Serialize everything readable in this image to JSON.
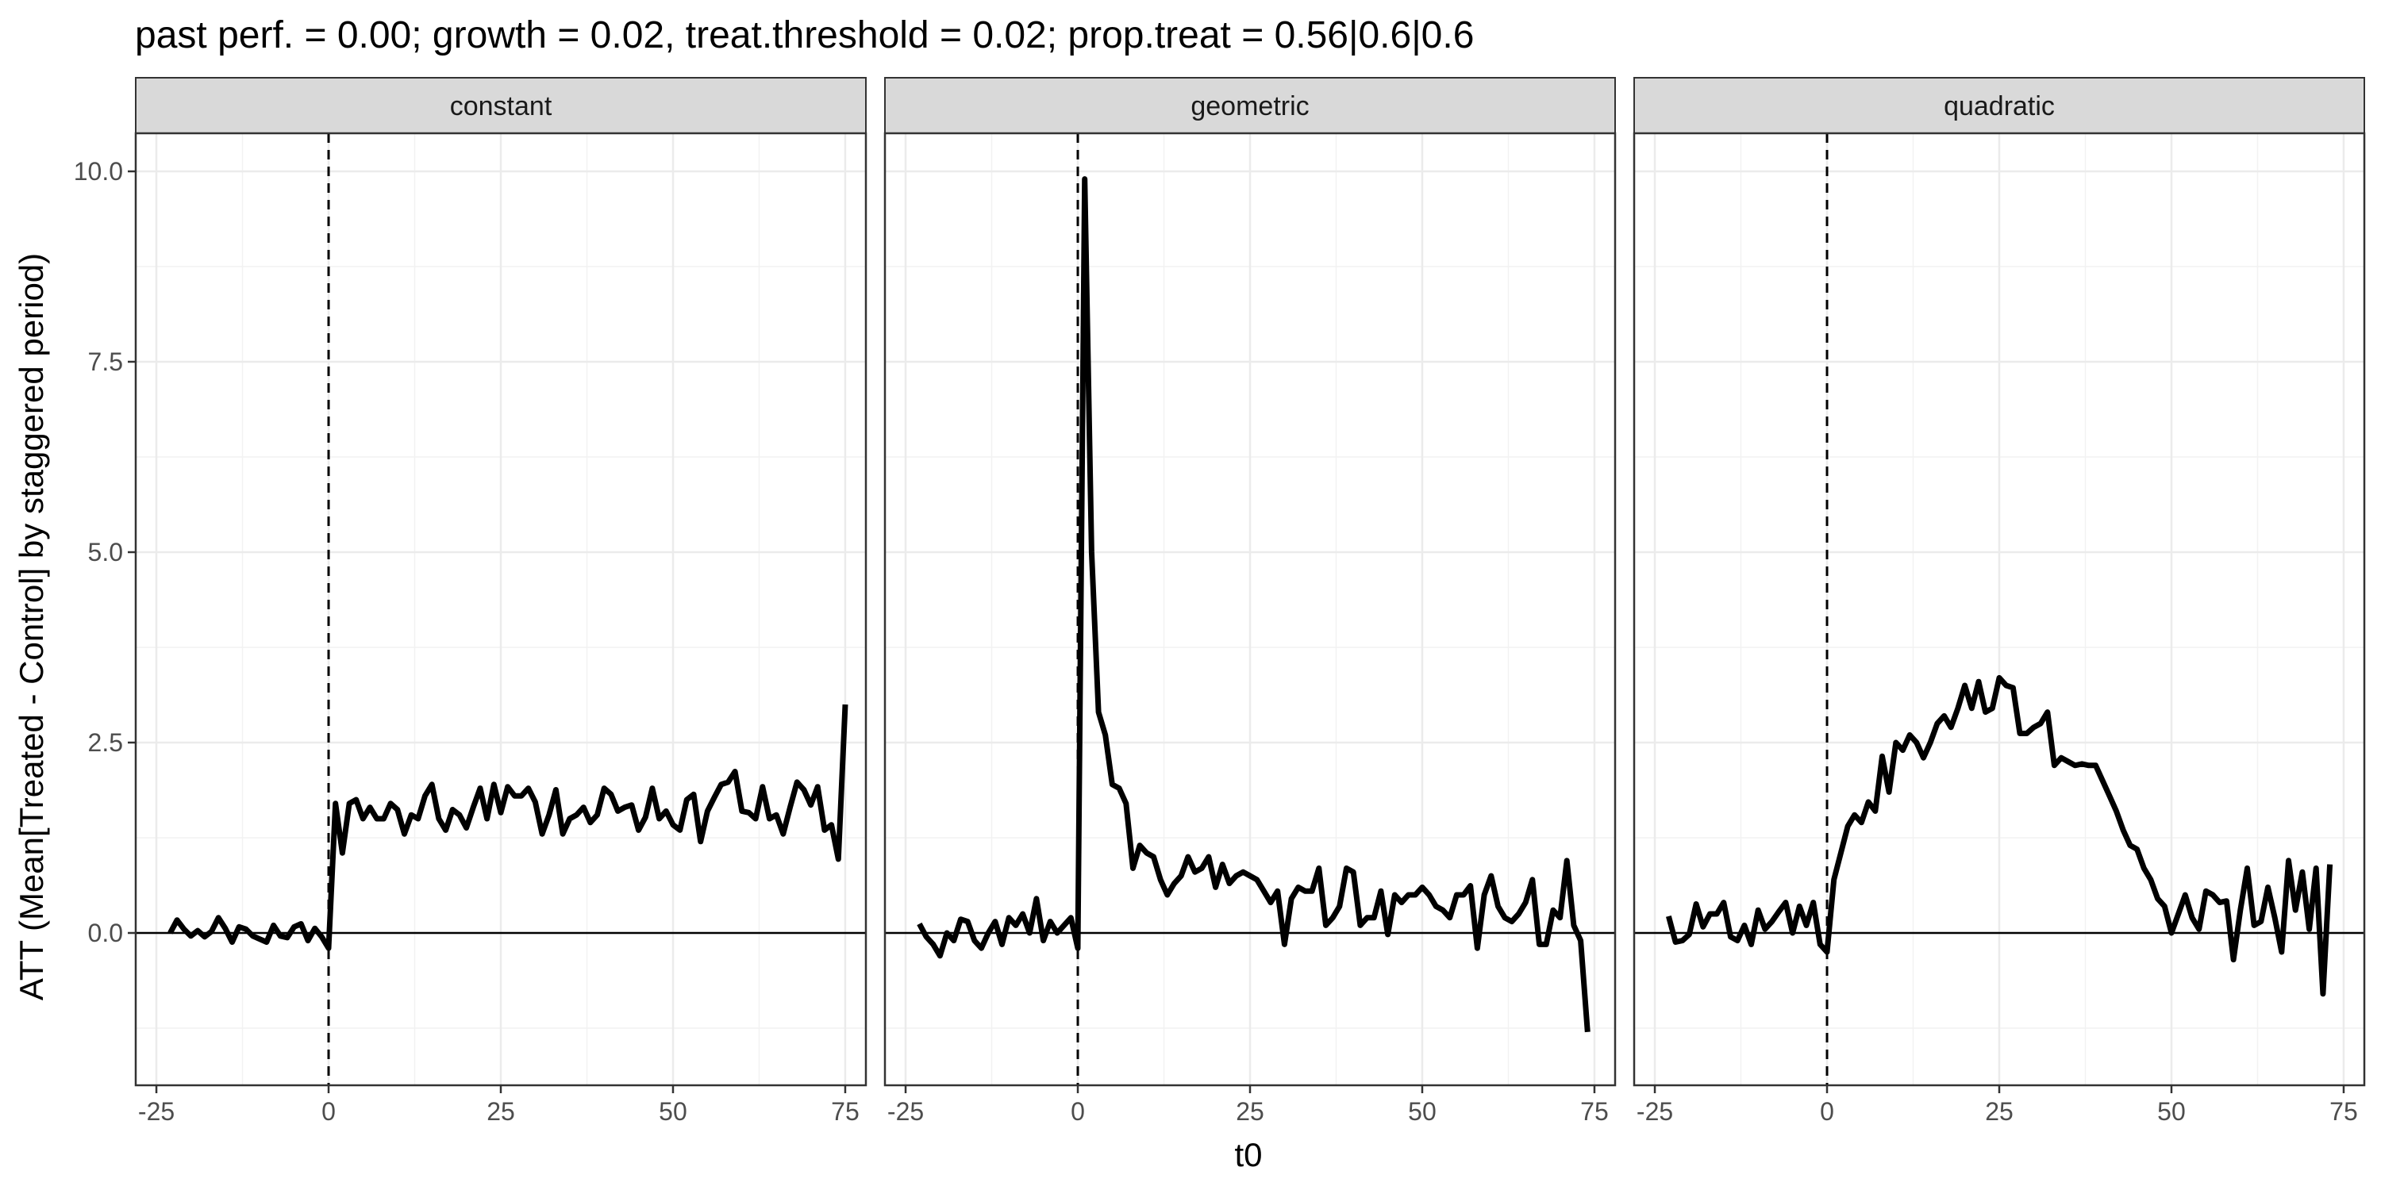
{
  "chart_data": {
    "type": "line",
    "title": "past perf. = 0.00; growth = 0.02,  treat.threshold = 0.02;  prop.treat = 0.56|0.6|0.6",
    "xlabel": "t0",
    "ylabel": "ATT (Mean[Treated - Control] by staggered period)",
    "xlim": [
      -28,
      78
    ],
    "ylim": [
      -2.0,
      10.5
    ],
    "x_ticks": [
      "-25",
      "0",
      "25",
      "50",
      "75"
    ],
    "x_tick_values": [
      -25,
      0,
      25,
      50,
      75
    ],
    "y_ticks": [
      "0.0",
      "2.5",
      "5.0",
      "7.5",
      "10.0"
    ],
    "y_tick_values": [
      0,
      2.5,
      5,
      7.5,
      10
    ],
    "reference_lines": {
      "horizontal_y": 0,
      "vertical_x": 0
    },
    "grid": true,
    "facets": [
      {
        "label": "constant",
        "x_start": -23,
        "values": [
          0.0,
          0.17,
          0.05,
          -0.04,
          0.03,
          -0.05,
          0.02,
          0.2,
          0.06,
          -0.12,
          0.08,
          0.05,
          -0.04,
          -0.08,
          -0.12,
          0.1,
          -0.04,
          -0.06,
          0.08,
          0.12,
          -0.1,
          0.06,
          -0.05,
          -0.2,
          1.7,
          1.05,
          1.7,
          1.75,
          1.5,
          1.65,
          1.5,
          1.5,
          1.7,
          1.62,
          1.3,
          1.55,
          1.5,
          1.8,
          1.95,
          1.5,
          1.35,
          1.62,
          1.55,
          1.38,
          1.65,
          1.9,
          1.5,
          1.95,
          1.58,
          1.92,
          1.8,
          1.8,
          1.9,
          1.72,
          1.3,
          1.55,
          1.88,
          1.3,
          1.5,
          1.55,
          1.65,
          1.45,
          1.55,
          1.9,
          1.82,
          1.6,
          1.65,
          1.68,
          1.35,
          1.52,
          1.9,
          1.5,
          1.6,
          1.42,
          1.35,
          1.75,
          1.82,
          1.2,
          1.6,
          1.78,
          1.95,
          1.98,
          2.12,
          1.6,
          1.58,
          1.5,
          1.92,
          1.5,
          1.55,
          1.3,
          1.65,
          1.98,
          1.88,
          1.68,
          1.92,
          1.35,
          1.42,
          0.97,
          3.0
        ]
      },
      {
        "label": "geometric",
        "x_start": -23,
        "values": [
          0.12,
          -0.05,
          -0.15,
          -0.3,
          0.0,
          -0.1,
          0.18,
          0.15,
          -0.1,
          -0.2,
          0.0,
          0.15,
          -0.15,
          0.2,
          0.1,
          0.25,
          0.0,
          0.45,
          -0.1,
          0.15,
          0.0,
          0.1,
          0.2,
          -0.2,
          9.9,
          5.0,
          2.9,
          2.6,
          1.95,
          1.9,
          1.7,
          0.85,
          1.15,
          1.05,
          1.0,
          0.7,
          0.5,
          0.65,
          0.75,
          1.0,
          0.8,
          0.85,
          1.0,
          0.6,
          0.9,
          0.65,
          0.75,
          0.8,
          0.75,
          0.7,
          0.55,
          0.4,
          0.55,
          -0.15,
          0.45,
          0.6,
          0.55,
          0.55,
          0.85,
          0.1,
          0.2,
          0.35,
          0.85,
          0.8,
          0.1,
          0.2,
          0.2,
          0.55,
          -0.02,
          0.5,
          0.4,
          0.5,
          0.5,
          0.6,
          0.5,
          0.35,
          0.3,
          0.2,
          0.5,
          0.5,
          0.62,
          -0.2,
          0.5,
          0.75,
          0.35,
          0.2,
          0.15,
          0.25,
          0.4,
          0.7,
          -0.15,
          -0.15,
          0.3,
          0.2,
          0.95,
          0.1,
          -0.1,
          -1.3
        ]
      },
      {
        "label": "quadratic",
        "x_start": -23,
        "values": [
          0.22,
          -0.12,
          -0.1,
          -0.02,
          0.38,
          0.08,
          0.25,
          0.25,
          0.4,
          -0.05,
          -0.1,
          0.1,
          -0.15,
          0.3,
          0.05,
          0.15,
          0.28,
          0.4,
          0.0,
          0.35,
          0.1,
          0.4,
          -0.15,
          -0.25,
          0.7,
          1.05,
          1.4,
          1.55,
          1.45,
          1.72,
          1.6,
          2.32,
          1.85,
          2.5,
          2.4,
          2.6,
          2.5,
          2.3,
          2.5,
          2.75,
          2.85,
          2.7,
          2.95,
          3.25,
          2.95,
          3.3,
          2.9,
          2.95,
          3.35,
          3.25,
          3.22,
          2.62,
          2.62,
          2.7,
          2.75,
          2.9,
          2.2,
          2.3,
          2.25,
          2.2,
          2.22,
          2.2,
          2.2,
          2.0,
          1.8,
          1.6,
          1.35,
          1.15,
          1.1,
          0.85,
          0.7,
          0.45,
          0.35,
          0.0,
          0.25,
          0.5,
          0.2,
          0.05,
          0.55,
          0.5,
          0.4,
          0.42,
          -0.35,
          0.3,
          0.85,
          0.1,
          0.15,
          0.6,
          0.2,
          -0.25,
          0.95,
          0.3,
          0.8,
          0.05,
          0.85,
          -0.8,
          0.9
        ]
      }
    ]
  }
}
